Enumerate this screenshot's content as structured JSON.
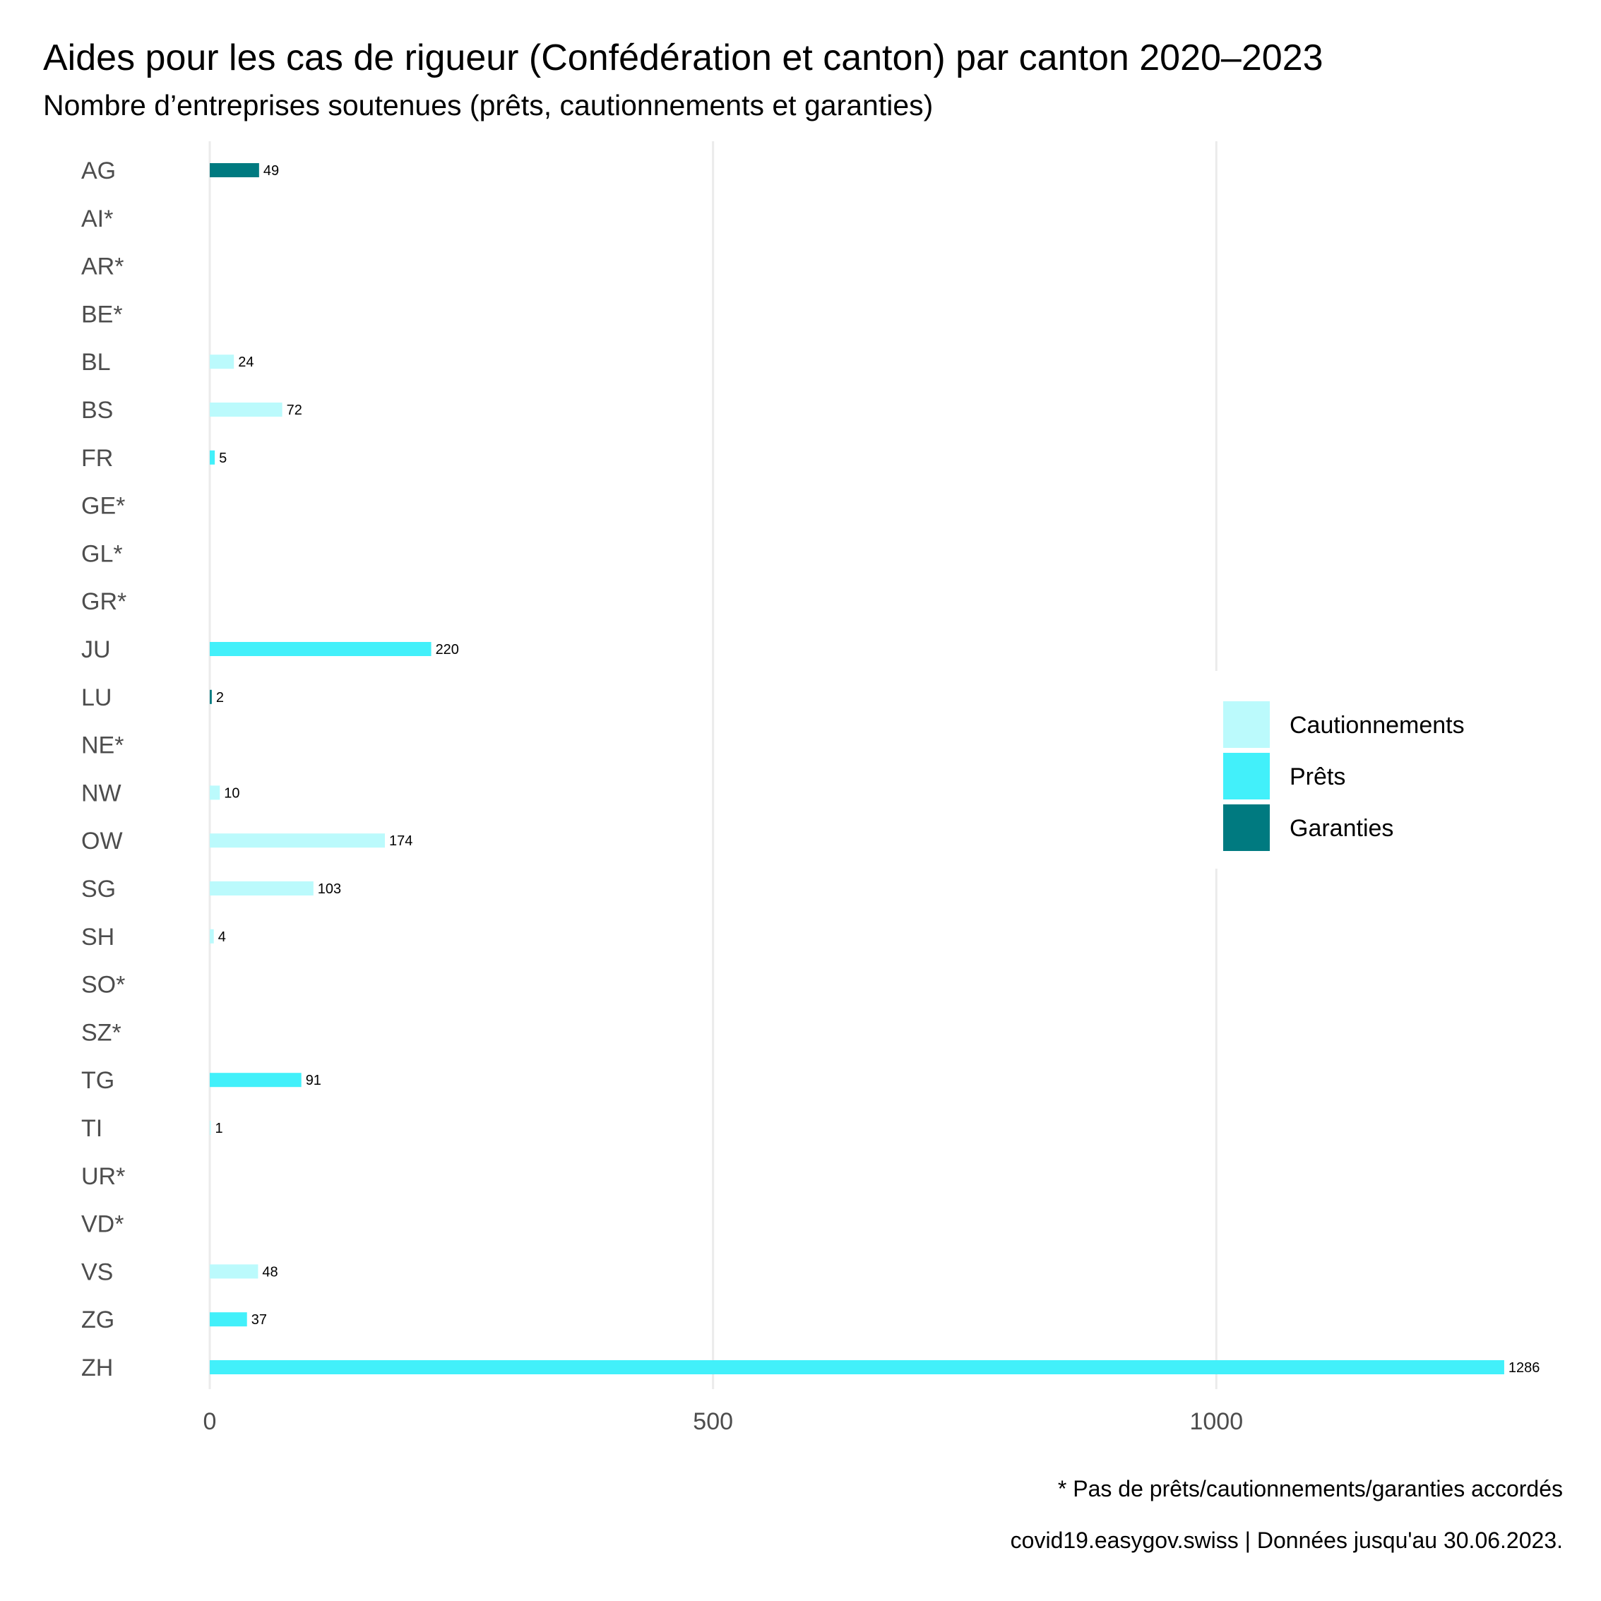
{
  "chart_data": {
    "type": "bar",
    "orientation": "horizontal",
    "title": "Aides pour les cas de rigueur (Confédération et canton) par canton 2020–2023",
    "subtitle": "Nombre d’entreprises soutenues (prêts, cautionnements et garanties)",
    "categories": [
      "AG",
      "AI*",
      "AR*",
      "BE*",
      "BL",
      "BS",
      "FR",
      "GE*",
      "GL*",
      "GR*",
      "JU",
      "LU",
      "NE*",
      "NW",
      "OW",
      "SG",
      "SH",
      "SO*",
      "SZ*",
      "TG",
      "TI",
      "UR*",
      "VD*",
      "VS",
      "ZG",
      "ZH"
    ],
    "series": [
      {
        "name": "Cautionnements",
        "color": "#bbfafc",
        "values": [
          0,
          0,
          0,
          0,
          24,
          72,
          0,
          0,
          0,
          0,
          0,
          0,
          0,
          10,
          174,
          103,
          4,
          0,
          0,
          0,
          1,
          0,
          0,
          48,
          0,
          0
        ]
      },
      {
        "name": "Prêts",
        "color": "#42f0fa",
        "values": [
          0,
          0,
          0,
          0,
          0,
          0,
          5,
          0,
          0,
          0,
          220,
          0,
          0,
          0,
          0,
          0,
          0,
          0,
          0,
          91,
          0,
          0,
          0,
          0,
          37,
          1286
        ]
      },
      {
        "name": "Garanties",
        "color": "#007a80",
        "values": [
          49,
          0,
          0,
          0,
          0,
          0,
          0,
          0,
          0,
          0,
          0,
          2,
          0,
          0,
          0,
          0,
          0,
          0,
          0,
          0,
          0,
          0,
          0,
          0,
          0,
          0
        ]
      }
    ],
    "xlim": [
      0,
      1300
    ],
    "xticks": [
      0,
      500,
      1000
    ],
    "xtick_labels": [
      "0",
      "500",
      "1000"
    ],
    "grid": "vertical major",
    "legend": {
      "position": "right",
      "entries": [
        "Cautionnements",
        "Prêts",
        "Garanties"
      ]
    }
  },
  "captions": {
    "note": "* Pas de prêts/cautionnements/garanties accordés",
    "source": "covid19.easygov.swiss | Données jusqu'au 30.06.2023."
  }
}
